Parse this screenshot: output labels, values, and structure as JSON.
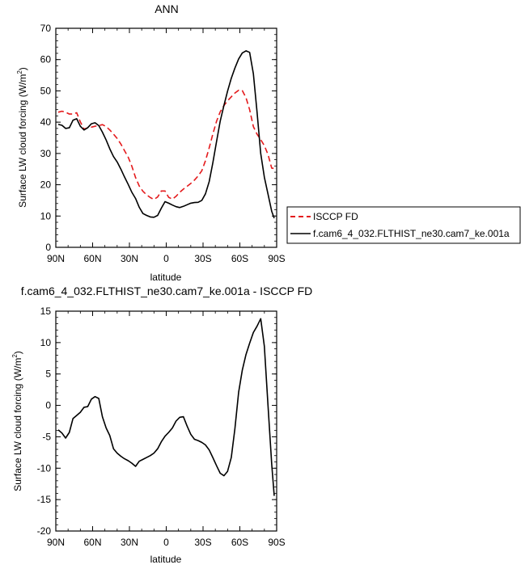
{
  "chart_data": [
    {
      "type": "line",
      "title": "ANN",
      "xlabel": "latitude",
      "ylabel": "Surface LW cloud forcing (W/m",
      "ylabel_sup": "2",
      "ylabel_tail": ")",
      "xlim": [
        90,
        -90
      ],
      "ylim": [
        0,
        70
      ],
      "xtick_values": [
        90,
        60,
        30,
        0,
        -30,
        -60,
        -90
      ],
      "xtick_labels": [
        "90N",
        "60N",
        "30N",
        "0",
        "30S",
        "60S",
        "90S"
      ],
      "ytick_values": [
        0,
        10,
        20,
        30,
        40,
        50,
        60,
        70
      ],
      "ytick_labels": [
        "0",
        "10",
        "20",
        "30",
        "40",
        "50",
        "60",
        "70"
      ],
      "legend_position": "right",
      "series": [
        {
          "name": "ISCCP FD",
          "color": "#e41a1c",
          "dash": "dashed",
          "x": [
            88,
            85,
            82,
            79,
            76,
            73,
            70,
            67,
            64,
            61,
            58,
            55,
            52,
            49,
            46,
            43,
            40,
            37,
            34,
            31,
            28,
            25,
            22,
            19,
            16,
            13,
            10,
            7,
            4,
            1,
            -2,
            -5,
            -8,
            -11,
            -14,
            -17,
            -20,
            -23,
            -26,
            -29,
            -32,
            -35,
            -38,
            -41,
            -44,
            -47,
            -50,
            -53,
            -56,
            -59,
            -62,
            -65,
            -68,
            -71,
            -74,
            -77,
            -80,
            -83,
            -86,
            -88
          ],
          "y": [
            43.2,
            43.5,
            43.2,
            42.6,
            42.6,
            43,
            40.1,
            37.8,
            38.2,
            38.4,
            38.7,
            38.9,
            39.2,
            38.6,
            37.5,
            36.2,
            34.8,
            33,
            30.9,
            28.8,
            25.9,
            22.3,
            19.6,
            17.9,
            16.8,
            15.9,
            15.3,
            16.1,
            18,
            18,
            16,
            15.4,
            16.3,
            17.6,
            18.6,
            19.5,
            20.4,
            21.5,
            22.8,
            24.5,
            27.7,
            31.8,
            36.2,
            40.3,
            43.3,
            45.3,
            46.8,
            48.1,
            49.3,
            50.2,
            50.1,
            47.8,
            44,
            38.6,
            36.2,
            34.4,
            32.5,
            29.6,
            25.3,
            25.2
          ]
        },
        {
          "name": "f.cam6_4_032.FLTHIST_ne30.cam7_ke.001a",
          "color": "#000000",
          "dash": "solid",
          "x": [
            88,
            85,
            82,
            79,
            76,
            73,
            70,
            67,
            64,
            61,
            58,
            55,
            52,
            49,
            46,
            43,
            40,
            37,
            34,
            31,
            28,
            25,
            22,
            19,
            16,
            13,
            10,
            7,
            4,
            1,
            -2,
            -5,
            -8,
            -11,
            -14,
            -17,
            -20,
            -23,
            -26,
            -29,
            -32,
            -35,
            -38,
            -41,
            -44,
            -47,
            -50,
            -53,
            -56,
            -59,
            -62,
            -65,
            -68,
            -71,
            -74,
            -77,
            -80,
            -83,
            -86,
            -88
          ],
          "y": [
            39.3,
            39,
            38,
            38.2,
            40.6,
            41.1,
            38.7,
            37.5,
            38.2,
            39.5,
            39.8,
            38.9,
            36.8,
            34.3,
            31.5,
            29,
            27.3,
            25,
            22.5,
            20.1,
            17.6,
            15.6,
            12.8,
            10.8,
            10.2,
            9.7,
            9.6,
            10.2,
            12.5,
            14.6,
            14.1,
            13.5,
            13,
            12.7,
            13.1,
            13.6,
            14.1,
            14.3,
            14.4,
            15,
            17.1,
            21,
            27,
            33.8,
            40.3,
            45.3,
            49.9,
            54,
            57.3,
            60.2,
            62.1,
            62.8,
            62.3,
            55.5,
            43.4,
            30,
            22.4,
            16.9,
            11.5,
            9.3
          ]
        }
      ]
    },
    {
      "type": "line",
      "title": "f.cam6_4_032.FLTHIST_ne30.cam7_ke.001a - ISCCP FD",
      "xlabel": "latitude",
      "ylabel": "Surface LW cloud forcing (W/m",
      "ylabel_sup": "2",
      "ylabel_tail": ")",
      "xlim": [
        90,
        -90
      ],
      "ylim": [
        -20,
        15
      ],
      "xtick_values": [
        90,
        60,
        30,
        0,
        -30,
        -60,
        -90
      ],
      "xtick_labels": [
        "90N",
        "60N",
        "30N",
        "0",
        "30S",
        "60S",
        "90S"
      ],
      "ytick_values": [
        -20,
        -15,
        -10,
        -5,
        0,
        5,
        10,
        15
      ],
      "ytick_labels": [
        "-20",
        "-15",
        "-10",
        "-5",
        "0",
        "5",
        "10",
        "15"
      ],
      "series": [
        {
          "color": "#000000",
          "dash": "solid",
          "x": [
            88,
            85,
            82,
            79,
            76,
            73,
            70,
            67,
            64,
            61,
            58,
            55,
            52,
            49,
            46,
            43,
            40,
            37,
            34,
            31,
            28,
            25,
            22,
            19,
            16,
            13,
            10,
            7,
            4,
            1,
            -2,
            -5,
            -8,
            -11,
            -14,
            -17,
            -20,
            -23,
            -26,
            -29,
            -32,
            -35,
            -38,
            -41,
            -44,
            -47,
            -50,
            -53,
            -56,
            -59,
            -62,
            -65,
            -68,
            -71,
            -74,
            -77,
            -80,
            -83,
            -86,
            -88
          ],
          "y": [
            -3.9,
            -4.4,
            -5.2,
            -4.3,
            -2.1,
            -1.6,
            -1.1,
            -0.3,
            -0.2,
            1,
            1.4,
            1.1,
            -1.8,
            -3.6,
            -4.8,
            -6.9,
            -7.6,
            -8.1,
            -8.5,
            -8.8,
            -9.2,
            -9.7,
            -8.9,
            -8.6,
            -8.3,
            -8,
            -7.6,
            -6.9,
            -5.8,
            -4.9,
            -4.3,
            -3.6,
            -2.5,
            -1.9,
            -1.8,
            -3.3,
            -4.6,
            -5.4,
            -5.6,
            -5.9,
            -6.3,
            -7.1,
            -8.3,
            -9.6,
            -10.8,
            -11.2,
            -10.5,
            -8.3,
            -3.7,
            2.1,
            5.6,
            8.1,
            9.9,
            11.6,
            12.6,
            13.8,
            9.4,
            -0.2,
            -9.4,
            -14.4
          ]
        }
      ]
    }
  ]
}
